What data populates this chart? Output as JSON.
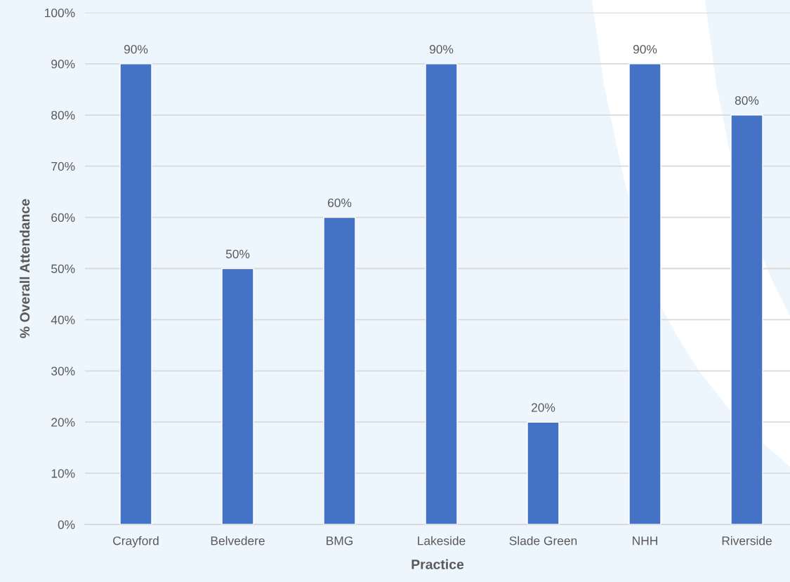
{
  "chart_data": {
    "type": "bar",
    "xlabel": "Practice",
    "ylabel": "% Overall Attendance",
    "categories": [
      "Crayford",
      "Belvedere",
      "BMG",
      "Lakeside",
      "Slade Green",
      "NHH",
      "Riverside"
    ],
    "values": [
      90,
      50,
      60,
      90,
      20,
      90,
      80
    ],
    "color": "#4472c4",
    "value_labels": [
      "90%",
      "50%",
      "60%",
      "90%",
      "20%",
      "90%",
      "80%"
    ],
    "ylim": [
      0,
      100
    ],
    "yticks": [
      {
        "value": 0,
        "label": "0%"
      },
      {
        "value": 10,
        "label": "10%"
      },
      {
        "value": 20,
        "label": "20%"
      },
      {
        "value": 30,
        "label": "30%"
      },
      {
        "value": 40,
        "label": "40%"
      },
      {
        "value": 50,
        "label": "50%"
      },
      {
        "value": 60,
        "label": "60%"
      },
      {
        "value": 70,
        "label": "70%"
      },
      {
        "value": 80,
        "label": "80%"
      },
      {
        "value": 90,
        "label": "90%"
      },
      {
        "value": 100,
        "label": "100%"
      }
    ],
    "grid": "y"
  }
}
